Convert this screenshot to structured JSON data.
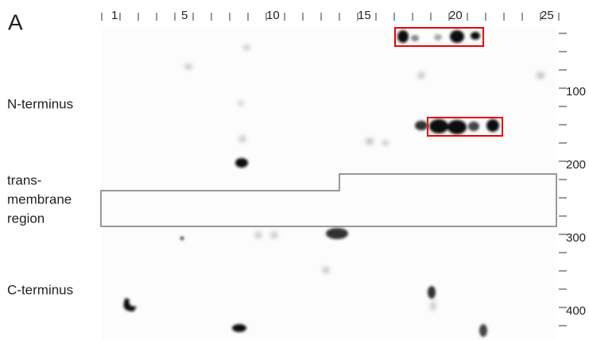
{
  "panel_label": "A",
  "top_ruler": [
    1,
    5,
    10,
    15,
    20,
    25
  ],
  "right_ruler": [
    100,
    200,
    300,
    400
  ],
  "regions": {
    "n_terminus": "N-terminus",
    "transmembrane": [
      "trans-",
      "membrane",
      "region"
    ],
    "c_terminus": "C-terminus"
  }
}
